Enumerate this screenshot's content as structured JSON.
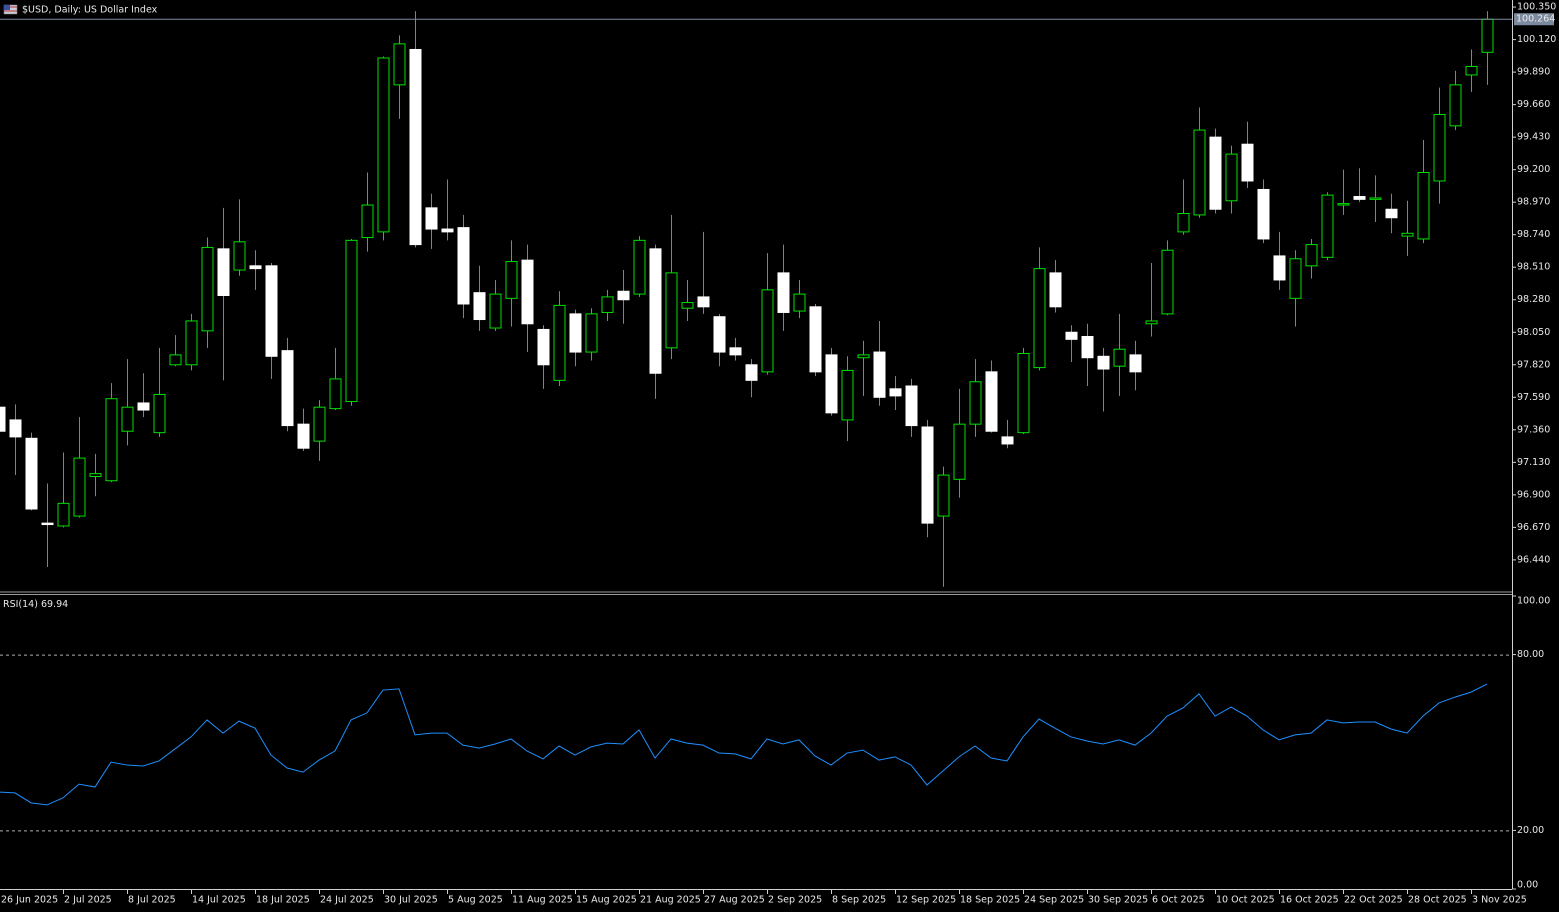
{
  "chart_data": [
    {
      "type": "candlestick",
      "title": "$USD, Daily:  US Dollar Index",
      "categories": [
        "26 Jun 2025",
        null,
        null,
        null,
        "2 Jul 2025",
        null,
        null,
        null,
        "8 Jul 2025",
        null,
        null,
        null,
        "14 Jul 2025",
        null,
        null,
        null,
        "18 Jul 2025",
        null,
        null,
        null,
        "24 Jul 2025",
        null,
        null,
        null,
        "30 Jul 2025",
        null,
        null,
        null,
        "5 Aug 2025",
        null,
        null,
        null,
        "11 Aug 2025",
        null,
        null,
        null,
        "15 Aug 2025",
        null,
        null,
        null,
        "21 Aug 2025",
        null,
        null,
        null,
        "27 Aug 2025",
        null,
        null,
        null,
        "2 Sep 2025",
        null,
        null,
        null,
        "8 Sep 2025",
        null,
        null,
        null,
        "12 Sep 2025",
        null,
        null,
        null,
        "18 Sep 2025",
        null,
        null,
        null,
        "24 Sep 2025",
        null,
        null,
        null,
        "30 Sep 2025",
        null,
        null,
        null,
        "6 Oct 2025",
        null,
        null,
        null,
        "10 Oct 2025",
        null,
        null,
        null,
        "16 Oct 2025",
        null,
        null,
        null,
        "22 Oct 2025",
        null,
        null,
        null,
        "28 Oct 2025",
        null,
        null,
        null,
        "3 Nov 2025",
        null
      ],
      "open": [
        97.52,
        97.43,
        97.3,
        96.7,
        96.68,
        96.75,
        97.03,
        97.0,
        97.35,
        97.55,
        97.34,
        97.82,
        97.82,
        98.06,
        98.64,
        98.49,
        98.52,
        98.52,
        97.92,
        97.4,
        97.28,
        97.51,
        97.56,
        98.72,
        98.76,
        99.8,
        100.05,
        98.93,
        98.78,
        98.79,
        98.33,
        98.08,
        98.29,
        98.56,
        98.07,
        97.71,
        98.18,
        97.91,
        98.19,
        98.34,
        98.32,
        98.64,
        97.94,
        98.22,
        98.3,
        98.16,
        97.94,
        97.82,
        97.77,
        98.47,
        98.2,
        98.23,
        97.89,
        97.43,
        97.87,
        97.91,
        97.65,
        97.67,
        97.38,
        96.75,
        97.01,
        97.4,
        97.77,
        97.31,
        97.34,
        97.8,
        98.47,
        98.05,
        98.02,
        97.88,
        97.81,
        97.89,
        98.11,
        98.18,
        98.76,
        98.88,
        99.43,
        98.98,
        99.38,
        99.06,
        98.59,
        98.29,
        98.52,
        98.58,
        98.95,
        99.01,
        98.99,
        98.92,
        98.73,
        98.71,
        99.12,
        99.51,
        99.87,
        100.03
      ],
      "high": [
        97.57,
        97.54,
        97.34,
        96.98,
        97.2,
        97.45,
        97.19,
        97.69,
        97.86,
        97.76,
        97.94,
        98.03,
        98.18,
        98.72,
        98.93,
        98.99,
        98.63,
        98.54,
        98.01,
        97.51,
        97.57,
        97.94,
        98.71,
        99.18,
        100.0,
        100.15,
        100.32,
        99.03,
        99.13,
        98.88,
        98.52,
        98.42,
        98.7,
        98.67,
        98.1,
        98.34,
        98.21,
        98.22,
        98.35,
        98.49,
        98.73,
        98.67,
        98.88,
        98.42,
        98.76,
        98.18,
        98.01,
        97.86,
        98.61,
        98.67,
        98.42,
        98.25,
        97.94,
        97.88,
        97.99,
        98.13,
        97.74,
        97.72,
        97.43,
        97.1,
        97.65,
        97.86,
        97.85,
        97.43,
        97.94,
        98.65,
        98.56,
        98.1,
        98.11,
        97.94,
        98.18,
        97.99,
        98.54,
        98.7,
        99.13,
        99.64,
        99.49,
        99.37,
        99.54,
        99.13,
        98.76,
        98.63,
        98.71,
        99.04,
        99.2,
        99.21,
        99.16,
        99.03,
        98.98,
        99.41,
        99.78,
        99.9,
        100.05,
        100.32
      ],
      "low": [
        97.28,
        97.04,
        96.79,
        96.39,
        96.67,
        96.74,
        96.89,
        96.99,
        97.25,
        97.45,
        97.31,
        97.81,
        97.78,
        97.94,
        97.71,
        98.45,
        98.35,
        97.72,
        97.35,
        97.21,
        97.14,
        97.5,
        97.53,
        98.62,
        98.7,
        99.56,
        98.65,
        98.64,
        98.7,
        98.15,
        98.06,
        98.06,
        98.09,
        97.91,
        97.65,
        97.67,
        97.81,
        97.85,
        98.13,
        98.11,
        98.3,
        97.58,
        97.86,
        98.13,
        98.18,
        97.81,
        97.85,
        97.59,
        97.75,
        98.06,
        98.15,
        97.74,
        97.46,
        97.28,
        97.6,
        97.53,
        97.5,
        97.31,
        96.6,
        96.25,
        96.88,
        97.31,
        97.34,
        97.23,
        97.33,
        97.78,
        98.19,
        97.84,
        97.67,
        97.49,
        97.6,
        97.64,
        98.02,
        98.17,
        98.74,
        98.86,
        98.89,
        98.89,
        99.07,
        98.68,
        98.35,
        98.09,
        98.43,
        98.56,
        98.88,
        98.97,
        98.83,
        98.75,
        98.59,
        98.68,
        98.96,
        99.48,
        99.75,
        99.8
      ],
      "close": [
        97.35,
        97.31,
        96.8,
        96.69,
        96.84,
        97.16,
        97.05,
        97.58,
        97.52,
        97.5,
        97.61,
        97.89,
        98.13,
        98.65,
        98.31,
        98.69,
        98.5,
        97.88,
        97.39,
        97.23,
        97.52,
        97.72,
        98.7,
        98.95,
        99.99,
        100.09,
        98.67,
        98.78,
        98.76,
        98.25,
        98.14,
        98.32,
        98.55,
        98.11,
        97.82,
        98.24,
        97.91,
        98.18,
        98.3,
        98.28,
        98.7,
        97.76,
        98.47,
        98.26,
        98.23,
        97.91,
        97.89,
        97.71,
        98.35,
        98.19,
        98.32,
        97.77,
        97.48,
        97.78,
        97.89,
        97.59,
        97.6,
        97.39,
        96.7,
        97.04,
        97.4,
        97.7,
        97.35,
        97.26,
        97.9,
        98.5,
        98.23,
        98.0,
        97.87,
        97.79,
        97.93,
        97.77,
        98.13,
        98.63,
        98.89,
        99.48,
        98.92,
        99.31,
        99.12,
        98.71,
        98.42,
        98.57,
        98.67,
        99.02,
        98.96,
        98.99,
        99.0,
        98.86,
        98.75,
        99.18,
        99.59,
        99.8,
        99.93,
        100.264
      ],
      "up_color": "#000000",
      "down_color": "#ffffff",
      "wick_color": "#00e000",
      "price_line_color": "#7c8aa0",
      "ylim": [
        96.22,
        100.4
      ],
      "yticks": [
        {
          "value": 100.35,
          "label": "100.350"
        },
        {
          "value": 100.12,
          "label": "100.120"
        },
        {
          "value": 99.89,
          "label": "99.890"
        },
        {
          "value": 99.66,
          "label": "99.660"
        },
        {
          "value": 99.43,
          "label": "99.430"
        },
        {
          "value": 99.2,
          "label": "99.200"
        },
        {
          "value": 98.97,
          "label": "98.970"
        },
        {
          "value": 98.74,
          "label": "98.740"
        },
        {
          "value": 98.51,
          "label": "98.510"
        },
        {
          "value": 98.28,
          "label": "98.280"
        },
        {
          "value": 98.05,
          "label": "98.050"
        },
        {
          "value": 97.82,
          "label": "97.820"
        },
        {
          "value": 97.59,
          "label": "97.590"
        },
        {
          "value": 97.36,
          "label": "97.360"
        },
        {
          "value": 97.13,
          "label": "97.130"
        },
        {
          "value": 96.9,
          "label": "96.900"
        },
        {
          "value": 96.67,
          "label": "96.670"
        },
        {
          "value": 96.44,
          "label": "96.440"
        }
      ]
    },
    {
      "type": "line",
      "title": "RSI(14)",
      "color": "#1e90ff",
      "values": [
        33.1,
        32.8,
        29.4,
        28.7,
        31.1,
        35.8,
        34.8,
        43.3,
        42.3,
        42.0,
        43.7,
        47.8,
        51.9,
        57.7,
        53.2,
        57.3,
        54.9,
        45.7,
        41.3,
        39.9,
        44.0,
        47.1,
        57.7,
        60.1,
        67.9,
        68.3,
        52.6,
        53.2,
        53.2,
        49.1,
        48.1,
        49.5,
        51.2,
        47.1,
        44.4,
        48.8,
        45.7,
        48.5,
        49.8,
        49.5,
        54.3,
        44.7,
        51.2,
        49.8,
        49.1,
        46.4,
        46.1,
        44.4,
        51.2,
        49.5,
        50.9,
        45.4,
        42.3,
        46.4,
        47.4,
        44.0,
        45.1,
        42.3,
        35.5,
        40.3,
        45.1,
        48.8,
        44.7,
        43.7,
        51.9,
        58.0,
        54.9,
        51.9,
        50.5,
        49.5,
        50.9,
        49.1,
        53.2,
        59.0,
        61.8,
        66.6,
        59.0,
        62.1,
        59.0,
        54.3,
        50.9,
        52.6,
        53.2,
        57.7,
        56.7,
        57.0,
        57.0,
        54.6,
        53.2,
        59.0,
        63.5,
        65.5,
        67.2,
        69.94
      ],
      "ylim": [
        0,
        100
      ],
      "yticks": [
        {
          "value": 100,
          "label": "100.00"
        },
        {
          "value": 80,
          "label": "80.00"
        },
        {
          "value": 20,
          "label": "20.00"
        },
        {
          "value": 0,
          "label": "0.00"
        }
      ],
      "level_color": "#b0b0b0"
    }
  ]
}
